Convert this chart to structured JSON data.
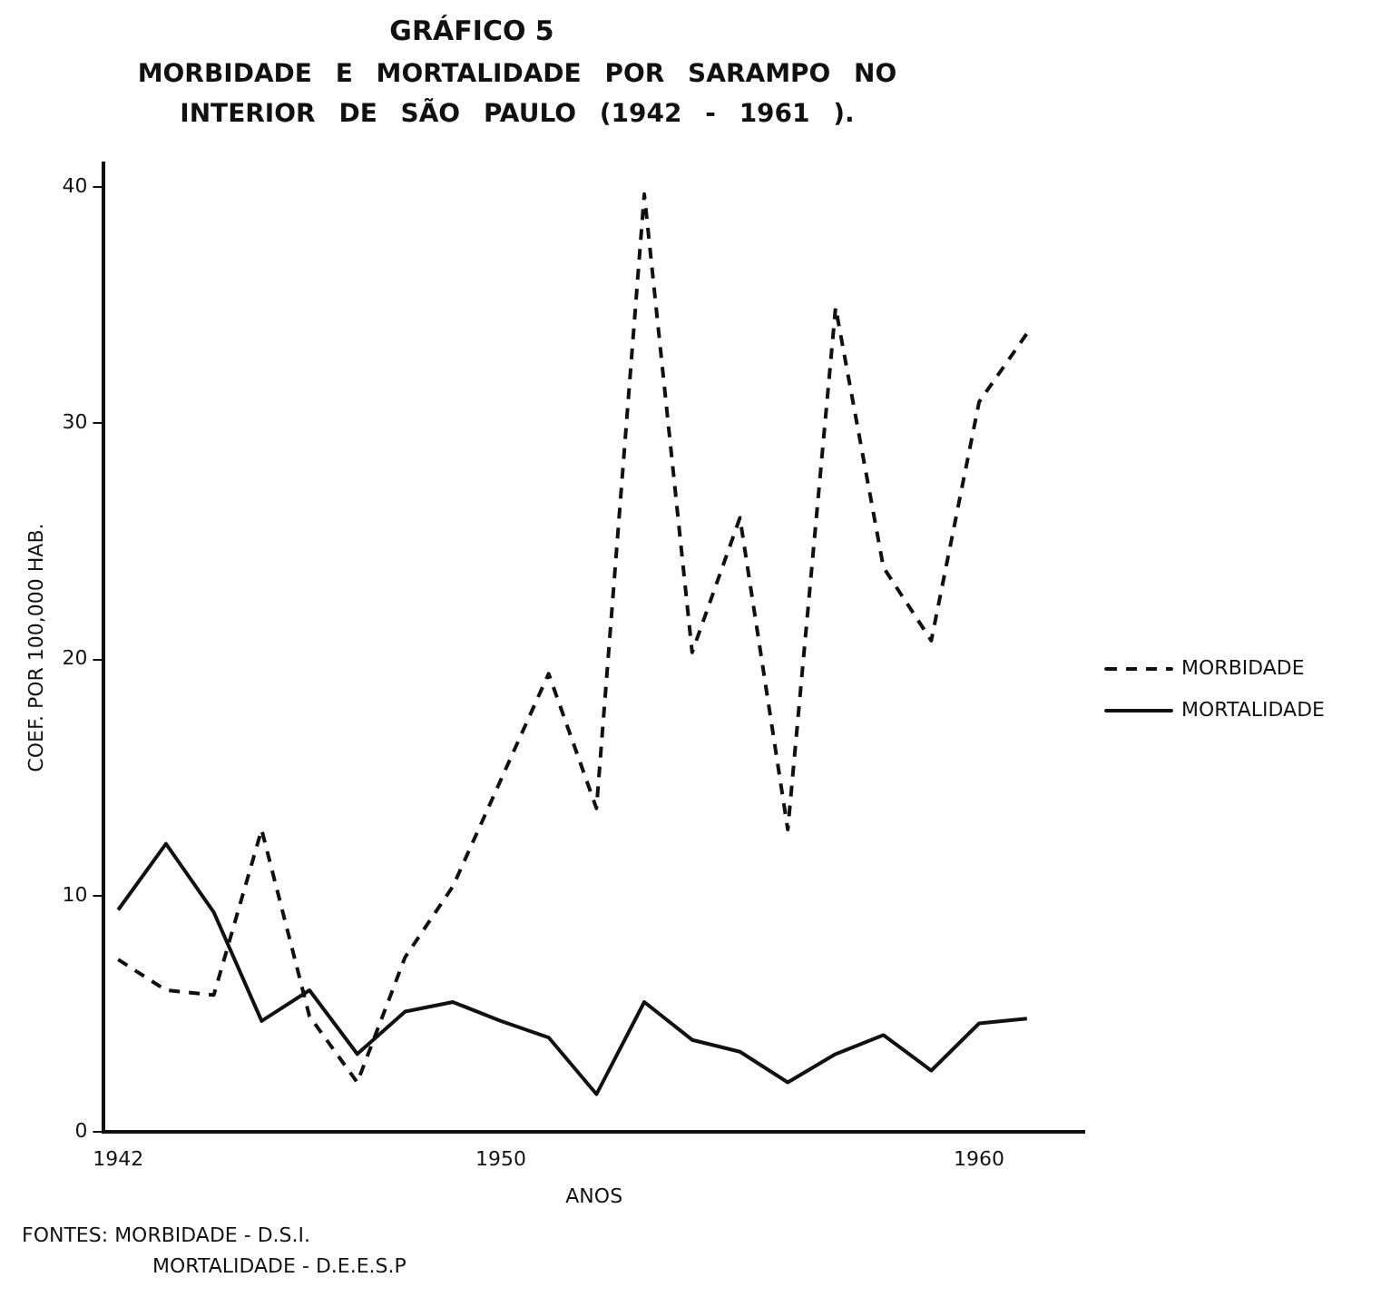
{
  "chart_data": {
    "type": "line",
    "title": "GRÁFICO 5",
    "subtitle": "MORBIDADE E MORTALIDADE POR SARAMPO NO INTERIOR DE SÃO PAULO (1942 - 1961 ).",
    "xlabel": "ANOS",
    "ylabel": "COEF. POR 100,000 HAB.",
    "x": [
      1942,
      1943,
      1944,
      1945,
      1946,
      1947,
      1948,
      1949,
      1950,
      1951,
      1952,
      1953,
      1954,
      1955,
      1956,
      1957,
      1958,
      1959,
      1960,
      1961
    ],
    "series": [
      {
        "name": "MORBIDADE",
        "color": "#111111",
        "line_style": "dashed",
        "values": [
          7.3,
          6.0,
          5.8,
          12.8,
          4.9,
          2.1,
          7.4,
          10.4,
          14.9,
          19.4,
          13.7,
          39.7,
          20.3,
          26.0,
          12.8,
          34.9,
          23.9,
          20.8,
          30.9,
          33.8
        ]
      },
      {
        "name": "MORTALIDADE",
        "color": "#111111",
        "line_style": "solid",
        "values": [
          9.4,
          12.2,
          9.3,
          4.7,
          6.0,
          3.3,
          5.1,
          5.5,
          4.7,
          4.0,
          1.6,
          5.5,
          3.9,
          3.4,
          2.1,
          3.3,
          4.1,
          2.6,
          4.6,
          4.8
        ]
      }
    ],
    "xlim": [
      1941.7,
      1962.2
    ],
    "xticks": [
      1942,
      1950,
      1960
    ],
    "ylim": [
      0,
      41
    ],
    "yticks": [
      0,
      10,
      20,
      30,
      40
    ],
    "grid": false,
    "legend": "right",
    "marker": "none",
    "annotations": [
      "FONTES: MORBIDADE - D.S.I.",
      "MORTALIDADE - D.E.E.S.P"
    ]
  }
}
